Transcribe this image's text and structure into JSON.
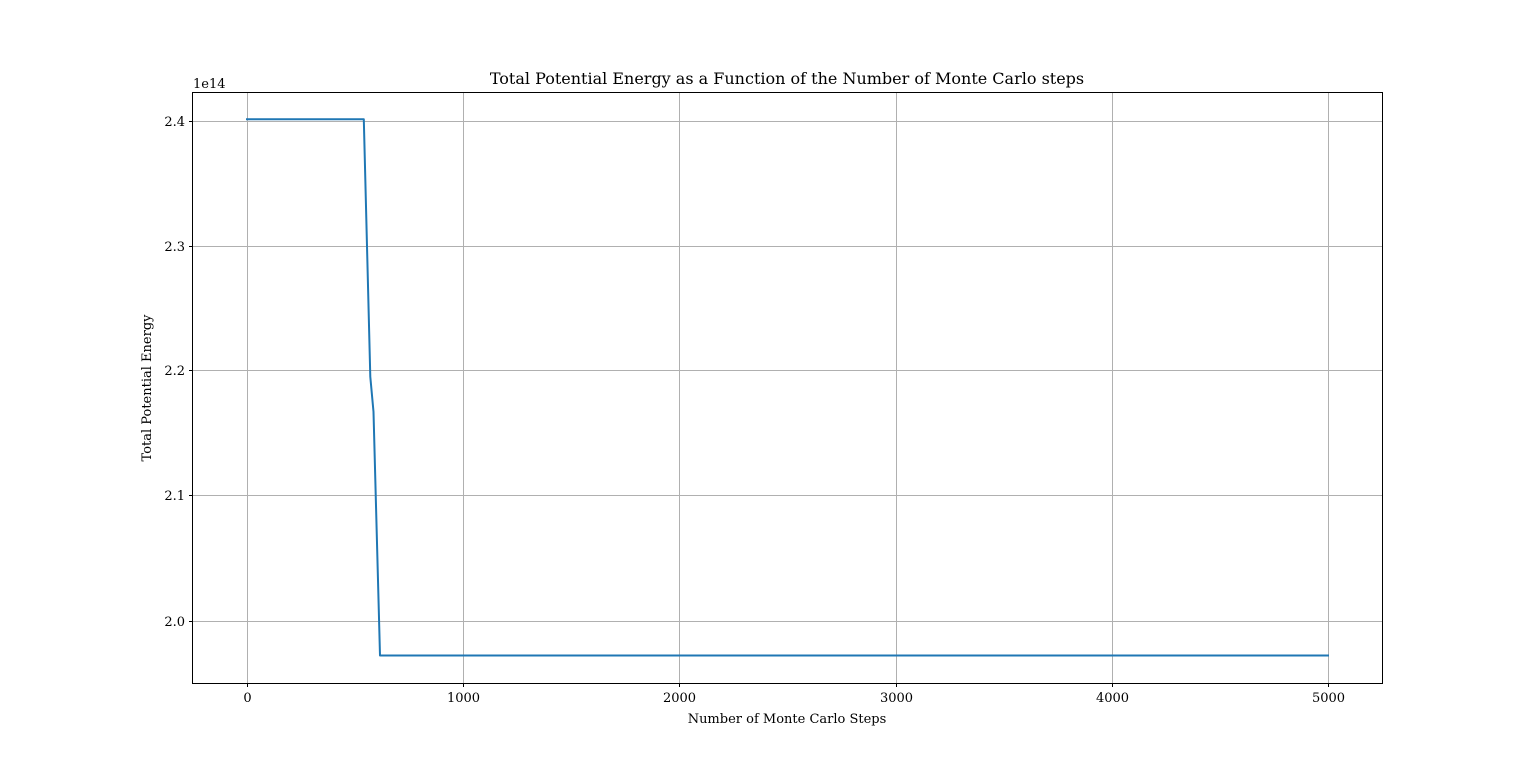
{
  "chart_data": {
    "type": "line",
    "title": "Total Potential Energy as a Function of the Number of Monte Carlo steps",
    "xlabel": "Number of Monte Carlo Steps",
    "ylabel": "Total Potential Energy",
    "y_offset_label": "1e14",
    "xlim": [
      -250,
      5250
    ],
    "ylim": [
      1.95,
      2.422
    ],
    "x_ticks": [
      0,
      1000,
      2000,
      3000,
      4000,
      5000
    ],
    "x_tick_labels": [
      "0",
      "1000",
      "2000",
      "3000",
      "4000",
      "5000"
    ],
    "y_ticks": [
      2.0,
      2.1,
      2.2,
      2.3,
      2.4
    ],
    "y_tick_labels": [
      "2.0",
      "2.1",
      "2.2",
      "2.3",
      "2.4"
    ],
    "grid": true,
    "series": [
      {
        "color": "#1f77b4",
        "x": [
          0,
          540,
          570,
          585,
          615,
          5000
        ],
        "y": [
          2.401,
          2.401,
          2.195,
          2.167,
          1.972,
          1.972
        ]
      }
    ]
  }
}
